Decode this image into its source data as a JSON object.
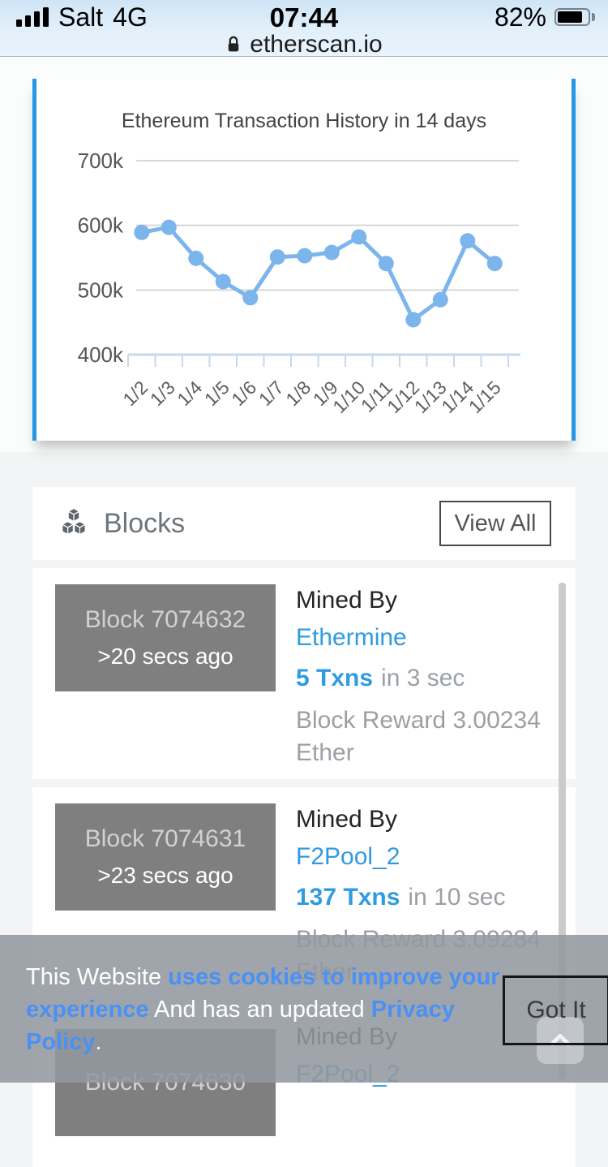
{
  "status_bar": {
    "signal_icon": "signal-bars-4",
    "carrier": "Salt",
    "network": "4G",
    "time": "07:44",
    "battery_percent": "82%",
    "battery_level": 0.82
  },
  "browser": {
    "lock_icon": "lock",
    "url": "etherscan.io"
  },
  "chart_data": {
    "type": "line",
    "title": "Ethereum Transaction History in 14 days",
    "x": [
      "1/2",
      "1/3",
      "1/4",
      "1/5",
      "1/6",
      "1/7",
      "1/8",
      "1/9",
      "1/10",
      "1/11",
      "1/12",
      "1/13",
      "1/14",
      "1/15"
    ],
    "values": [
      589000,
      597000,
      549000,
      513000,
      488000,
      551000,
      553000,
      558000,
      582000,
      541000,
      454000,
      485000,
      576000,
      541000
    ],
    "ylim": [
      400000,
      700000
    ],
    "yticks": [
      {
        "label": "700k",
        "value": 700000
      },
      {
        "label": "600k",
        "value": 600000
      },
      {
        "label": "500k",
        "value": 500000
      },
      {
        "label": "400k",
        "value": 400000
      }
    ],
    "xlabel": "",
    "ylabel": "",
    "legend": "none",
    "grid": "horizontal",
    "line_color": "#7cb5ec",
    "grid_color": "#d8d8d8",
    "axis_color": "#c6d9eb"
  },
  "blocks_section": {
    "icon": "cubes-icon",
    "title": "Blocks",
    "view_all_label": "View All",
    "rows": [
      {
        "block_label": "Block 7074632",
        "age": ">20 secs ago",
        "mined_by_label": "Mined By",
        "miner": "Ethermine",
        "txns": "5 Txns",
        "txns_suffix": "in 3 sec",
        "reward": "Block Reward 3.00234 Ether"
      },
      {
        "block_label": "Block 7074631",
        "age": ">23 secs ago",
        "mined_by_label": "Mined By",
        "miner": "F2Pool_2",
        "txns": "137 Txns",
        "txns_suffix": "in 10 sec",
        "reward": "Block Reward 3.09284 Ether"
      },
      {
        "block_label": "Block 7074630",
        "mined_by_label": "Mined By",
        "miner": "F2Pool_2"
      }
    ]
  },
  "cookie_banner": {
    "segments": [
      {
        "text": "This Website ",
        "type": "plain"
      },
      {
        "text": "uses cookies to improve your experience",
        "type": "link"
      },
      {
        "text": " And has an updated ",
        "type": "plain"
      },
      {
        "text": "Privacy Policy",
        "type": "link"
      },
      {
        "text": ".",
        "type": "plain"
      }
    ],
    "button_label": "Got It",
    "scroll_top_icon": "chevron-up"
  },
  "colors": {
    "card_accent_blue": "#2797e3",
    "link_blue": "#2f9be0",
    "banner_link_blue": "#4a90f5",
    "chart_line_blue": "#7cb5ec"
  }
}
